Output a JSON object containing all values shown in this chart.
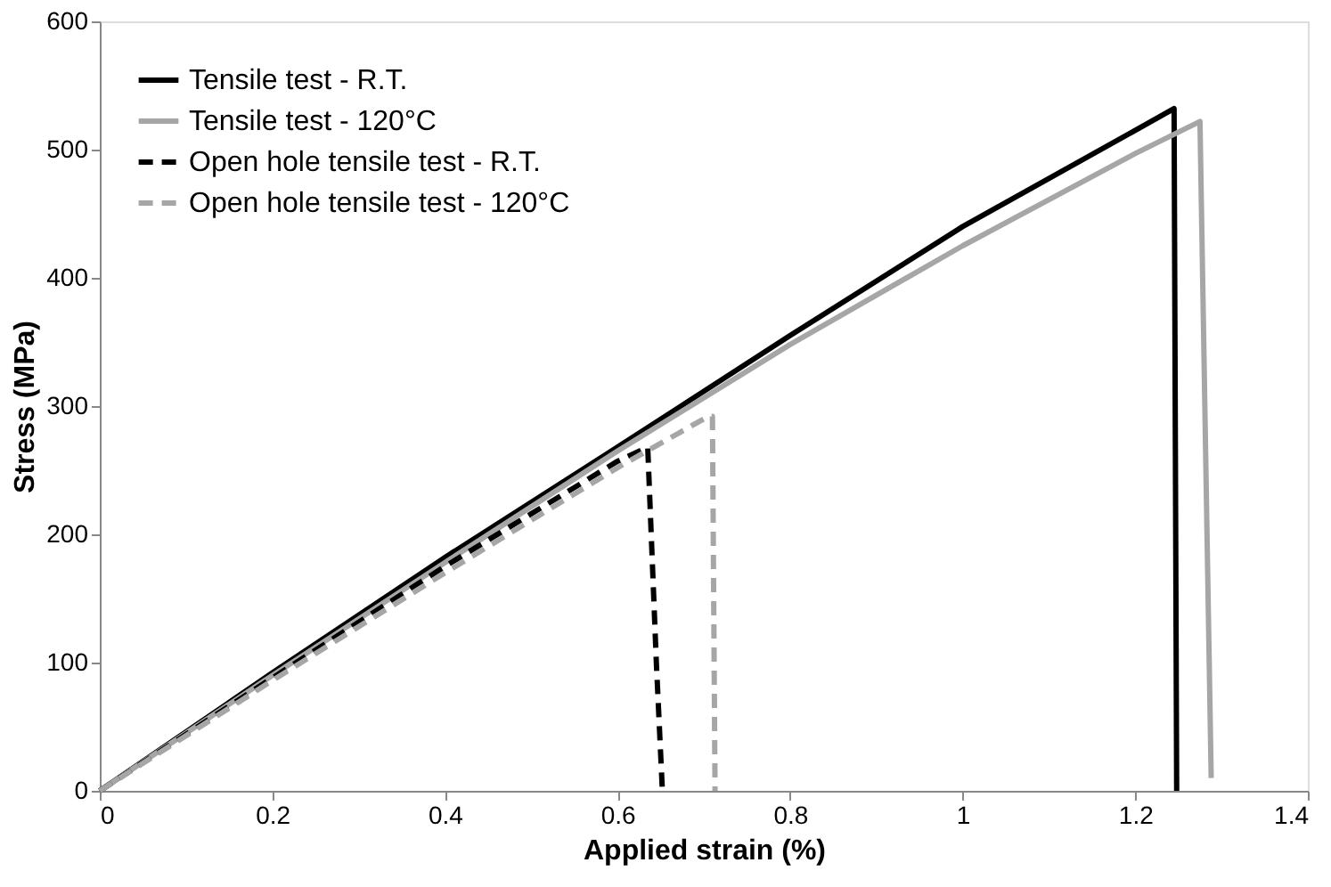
{
  "chart_data": {
    "type": "line",
    "xlabel": "Applied strain (%)",
    "ylabel": "Stress (MPa)",
    "xlim": [
      0,
      1.4
    ],
    "ylim": [
      0,
      600
    ],
    "xticks": [
      0,
      0.2,
      0.4,
      0.6,
      0.8,
      1,
      1.2,
      1.4
    ],
    "yticks": [
      0,
      100,
      200,
      300,
      400,
      500,
      600
    ],
    "grid": false,
    "legend": "top left",
    "marker": "none",
    "series": [
      {
        "name": "Tensile test - R.T.",
        "color": "#000000",
        "line_style": "solid",
        "x": [
          0,
          0.2,
          0.4,
          0.6,
          0.8,
          1.0,
          1.2,
          1.245,
          1.248
        ],
        "values": [
          0,
          92,
          182,
          268,
          355,
          440,
          515,
          532,
          0
        ]
      },
      {
        "name": "Tensile test - 120°C",
        "color": "#a6a6a6",
        "line_style": "solid",
        "x": [
          0,
          0.2,
          0.4,
          0.6,
          0.8,
          1.0,
          1.2,
          1.275,
          1.288
        ],
        "values": [
          0,
          90,
          178,
          265,
          348,
          425,
          497,
          522,
          10
        ]
      },
      {
        "name": "Open hole tensile test - R.T.",
        "color": "#000000",
        "line_style": "dashed",
        "x": [
          0,
          0.2,
          0.4,
          0.6,
          0.635,
          0.645,
          0.652
        ],
        "values": [
          0,
          88,
          175,
          257,
          268,
          100,
          0
        ]
      },
      {
        "name": "Open hole tensile test - 120°C",
        "color": "#a6a6a6",
        "line_style": "dashed",
        "x": [
          0,
          0.2,
          0.4,
          0.6,
          0.7,
          0.71,
          0.713
        ],
        "values": [
          0,
          86,
          170,
          252,
          290,
          292,
          0
        ]
      }
    ]
  }
}
